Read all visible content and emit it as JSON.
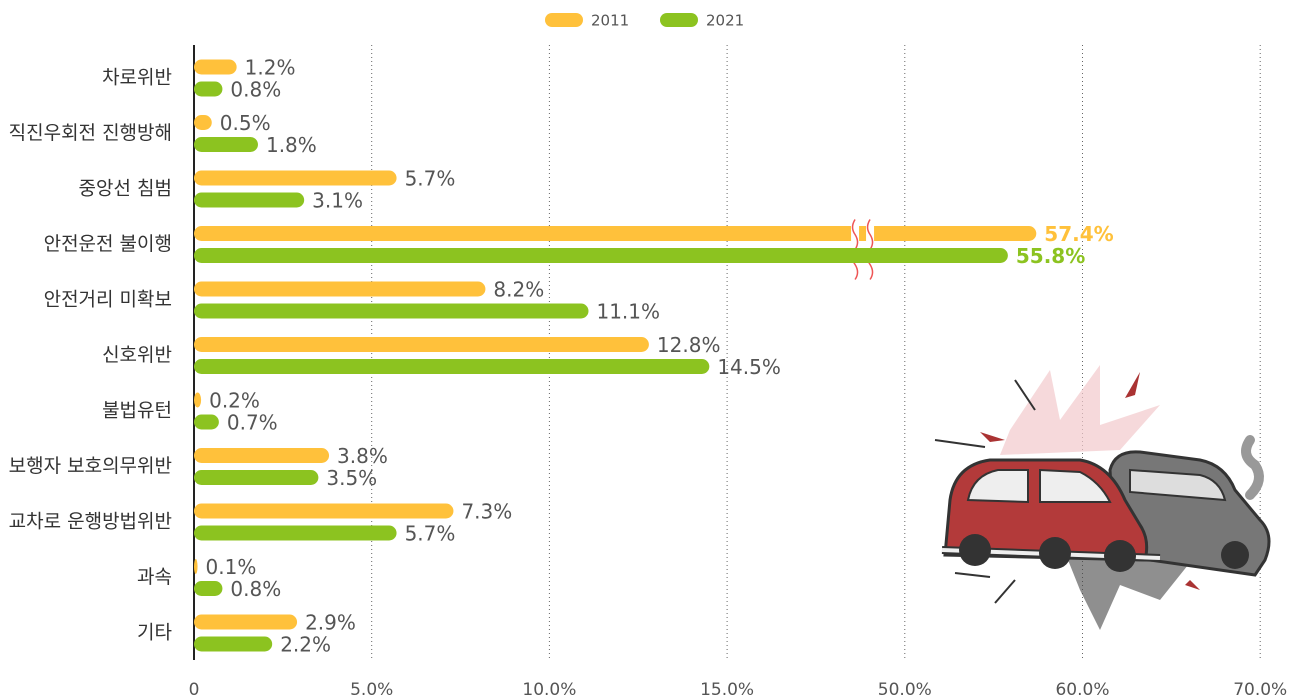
{
  "chart_data": {
    "type": "bar",
    "orientation": "horizontal",
    "categories": [
      "차로위반",
      "직진우회전 진행방해",
      "중앙선 침범",
      "안전운전 불이행",
      "안전거리 미확보",
      "신호위반",
      "불법유턴",
      "보행자 보호의무위반",
      "교차로 운행방법위반",
      "과속",
      "기타"
    ],
    "series": [
      {
        "name": "2011",
        "color": "#ffc13b",
        "values": [
          1.2,
          0.5,
          5.7,
          57.4,
          8.2,
          12.8,
          0.2,
          3.8,
          7.3,
          0.1,
          2.9
        ],
        "value_labels": [
          "1.2%",
          "0.5%",
          "5.7%",
          "57.4%",
          "8.2%",
          "12.8%",
          "0.2%",
          "3.8%",
          "7.3%",
          "0.1%",
          "2.9%"
        ]
      },
      {
        "name": "2021",
        "color": "#8cc320",
        "values": [
          0.8,
          1.8,
          3.1,
          55.8,
          11.1,
          14.5,
          0.7,
          3.5,
          5.7,
          0.8,
          2.2
        ],
        "value_labels": [
          "0.8%",
          "1.8%",
          "3.1%",
          "55.8%",
          "11.1%",
          "14.5%",
          "0.7%",
          "3.5%",
          "5.7%",
          "0.8%",
          "2.2%"
        ]
      }
    ],
    "xlim": [
      0,
      70
    ],
    "xticks": [
      0,
      {
        "value": 5,
        "label": "5.0%"
      },
      {
        "value": 10,
        "label": "10.0%"
      },
      {
        "value": 15,
        "label": "15.0%"
      },
      {
        "value": 50,
        "label": "50.0%"
      },
      {
        "value": 60,
        "label": "60.0%"
      },
      {
        "value": 70,
        "label": "70.0%"
      }
    ],
    "axis_break": [
      15,
      50
    ],
    "grid": true,
    "legend": "top"
  }
}
